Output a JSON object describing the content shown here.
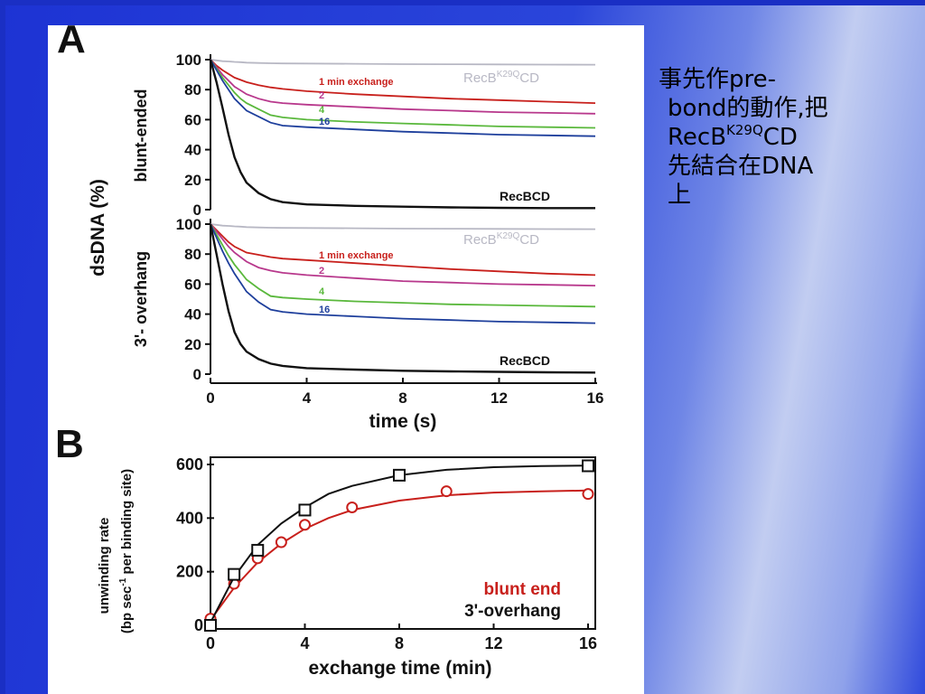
{
  "caption": {
    "line1": "事先作pre-",
    "line2": "bond的動作,把",
    "line3_main": "RecB",
    "line3_sup": "K29Q",
    "line3_end": "CD",
    "line4": "先結合在DNA",
    "line5": "上"
  },
  "panel_labels": {
    "a": "A",
    "b": "B"
  },
  "colors": {
    "black": "#111111",
    "red": "#c8201c",
    "magenta": "#b8388c",
    "green": "#5ab83c",
    "blue": "#1e3f9c",
    "grey": "#b8b8c4"
  },
  "chart_data": [
    {
      "type": "line",
      "panel": "A",
      "row_label": "blunt-ended",
      "ylabel": "dsDNA (%)",
      "ylim": [
        0,
        100
      ],
      "yticks": [
        "0",
        "20",
        "40",
        "60",
        "80",
        "100"
      ],
      "xlim": [
        0,
        16
      ],
      "x": [
        0,
        0.25,
        0.5,
        0.75,
        1,
        1.25,
        1.5,
        2,
        2.5,
        3,
        4,
        6,
        8,
        10,
        12,
        14,
        16
      ],
      "series": [
        {
          "name": "RecBK29QCD",
          "label_main": "RecB",
          "label_sup": "K29Q",
          "label_end": "CD",
          "color": "#b8b8c4",
          "values": [
            100,
            99.5,
            99,
            98.8,
            98.5,
            98.3,
            98,
            97.8,
            97.6,
            97.5,
            97.4,
            97.2,
            97,
            96.9,
            96.8,
            96.7,
            96.6
          ]
        },
        {
          "name": "1 min exchange",
          "color": "#c8201c",
          "values": [
            100,
            96,
            93,
            90.5,
            88,
            86.5,
            85,
            83,
            81.5,
            80.5,
            79,
            77,
            75.5,
            74,
            73,
            72,
            71
          ]
        },
        {
          "name": "2",
          "color": "#b8388c",
          "values": [
            100,
            95,
            90,
            86,
            82,
            79.5,
            77,
            74,
            72,
            71,
            70,
            68.5,
            67,
            66,
            65,
            64.5,
            64
          ]
        },
        {
          "name": "4",
          "color": "#5ab83c",
          "values": [
            100,
            94,
            88,
            83,
            78,
            74,
            71,
            67,
            63,
            61.5,
            60,
            58.5,
            57.5,
            56.5,
            55.5,
            55,
            54.5
          ]
        },
        {
          "name": "16",
          "color": "#1e3f9c",
          "values": [
            100,
            93,
            86,
            80,
            74,
            70,
            66,
            62,
            58,
            56,
            55,
            53.5,
            52,
            51,
            50,
            49.5,
            49
          ]
        },
        {
          "name": "RecBCD",
          "color": "#111111",
          "values": [
            100,
            85,
            68,
            50,
            35,
            25,
            18,
            11,
            7,
            5,
            3.5,
            2.5,
            2,
            1.5,
            1.2,
            1,
            1
          ]
        }
      ]
    },
    {
      "type": "line",
      "panel": "A",
      "row_label": "3'- overhang",
      "ylabel": "dsDNA (%)",
      "ylim": [
        0,
        100
      ],
      "yticks": [
        "0",
        "20",
        "40",
        "60",
        "80",
        "100"
      ],
      "xlim": [
        0,
        16
      ],
      "xticks": [
        "0",
        "4",
        "8",
        "12",
        "16"
      ],
      "xlabel": "time (s)",
      "x": [
        0,
        0.25,
        0.5,
        0.75,
        1,
        1.25,
        1.5,
        2,
        2.5,
        3,
        4,
        6,
        8,
        10,
        12,
        14,
        16
      ],
      "series": [
        {
          "name": "RecBK29QCD",
          "label_main": "RecB",
          "label_sup": "K29Q",
          "label_end": "CD",
          "color": "#b8b8c4",
          "values": [
            100,
            99.5,
            99,
            98.8,
            98.5,
            98.3,
            98,
            97.8,
            97.6,
            97.5,
            97.4,
            97.2,
            97,
            96.9,
            96.8,
            96.7,
            96.6
          ]
        },
        {
          "name": "1 min exchange",
          "color": "#c8201c",
          "values": [
            100,
            96,
            92,
            88,
            85,
            83,
            81,
            79.5,
            78,
            77,
            76,
            74,
            72,
            70,
            68.5,
            67,
            66
          ]
        },
        {
          "name": "2",
          "color": "#b8388c",
          "values": [
            100,
            95,
            90,
            85,
            81,
            78,
            75,
            71,
            69,
            67.5,
            66,
            64,
            62,
            61,
            60,
            59.5,
            59
          ]
        },
        {
          "name": "4",
          "color": "#5ab83c",
          "values": [
            100,
            93,
            86,
            79,
            73,
            68,
            63,
            57,
            52,
            51,
            50,
            48.5,
            47.5,
            46.5,
            46,
            45.5,
            45
          ]
        },
        {
          "name": "16",
          "color": "#1e3f9c",
          "values": [
            100,
            91,
            82,
            74,
            67,
            61,
            55,
            48,
            43,
            41.5,
            40,
            38.5,
            37,
            36,
            35,
            34.5,
            34
          ]
        },
        {
          "name": "RecBCD",
          "color": "#111111",
          "values": [
            100,
            80,
            60,
            42,
            28,
            20,
            15,
            10,
            7,
            5.5,
            4,
            3,
            2.2,
            1.8,
            1.5,
            1.2,
            1
          ]
        }
      ]
    },
    {
      "type": "line",
      "panel": "B",
      "ylabel_line1": "unwinding rate",
      "ylabel_line2_a": "(bp sec",
      "ylabel_line2_sup": "-1",
      "ylabel_line2_b": " per binding site)",
      "xlabel": "exchange time (min)",
      "xlim": [
        0,
        16
      ],
      "ylim": [
        0,
        600
      ],
      "xticks": [
        "0",
        "4",
        "8",
        "12",
        "16"
      ],
      "yticks": [
        "0",
        "200",
        "400",
        "600"
      ],
      "series": [
        {
          "name": "blunt end",
          "color": "#c8201c",
          "marker": "circle",
          "points": [
            [
              0,
              25
            ],
            [
              1,
              155
            ],
            [
              2,
              250
            ],
            [
              3,
              310
            ],
            [
              4,
              375
            ],
            [
              6,
              440
            ],
            [
              10,
              500
            ],
            [
              16,
              490
            ]
          ],
          "fit": [
            [
              0,
              20
            ],
            [
              1,
              140
            ],
            [
              2,
              235
            ],
            [
              3,
              305
            ],
            [
              4,
              360
            ],
            [
              5,
              400
            ],
            [
              6,
              430
            ],
            [
              8,
              465
            ],
            [
              10,
              485
            ],
            [
              12,
              495
            ],
            [
              14,
              500
            ],
            [
              16,
              503
            ]
          ]
        },
        {
          "name": "3'-overhang",
          "color": "#111111",
          "marker": "square",
          "points": [
            [
              0,
              0
            ],
            [
              1,
              190
            ],
            [
              2,
              280
            ],
            [
              4,
              430
            ],
            [
              8,
              560
            ],
            [
              16,
              595
            ]
          ],
          "fit": [
            [
              0,
              10
            ],
            [
              1,
              180
            ],
            [
              2,
              300
            ],
            [
              3,
              380
            ],
            [
              4,
              440
            ],
            [
              5,
              490
            ],
            [
              6,
              520
            ],
            [
              8,
              560
            ],
            [
              10,
              580
            ],
            [
              12,
              590
            ],
            [
              14,
              594
            ],
            [
              16,
              596
            ]
          ]
        }
      ]
    }
  ]
}
